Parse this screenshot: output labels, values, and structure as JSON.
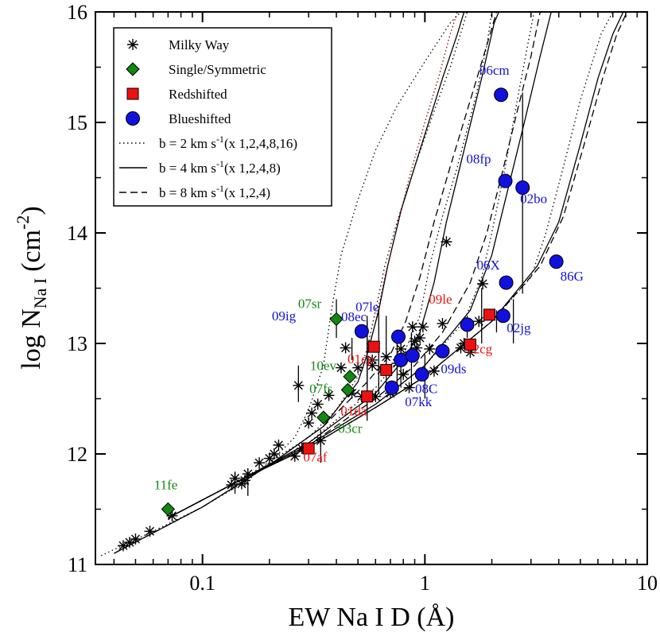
{
  "chart_data": {
    "type": "scatter",
    "xscale": "log",
    "xlim": [
      0.033,
      10
    ],
    "ylim": [
      11,
      16
    ],
    "xlabel": "EW Na I D (Å)",
    "ylabel_main": "log N",
    "ylabel_sub": "Na I",
    "ylabel_unit": "(cm",
    "ylabel_sup": "-2",
    "ylabel_close": ")",
    "x_ticks": [
      {
        "value": 0.1,
        "label": "0.1"
      },
      {
        "value": 1,
        "label": "1"
      },
      {
        "value": 10,
        "label": "10"
      }
    ],
    "y_ticks": [
      {
        "value": 11,
        "label": "11"
      },
      {
        "value": 12,
        "label": "12"
      },
      {
        "value": 13,
        "label": "13"
      },
      {
        "value": 14,
        "label": "14"
      },
      {
        "value": 15,
        "label": "15"
      },
      {
        "value": 16,
        "label": "16"
      }
    ],
    "colors": {
      "green": "#118811",
      "red": "#ee1111",
      "blue": "#1111dd",
      "black": "#000000",
      "curve_red": "#880000"
    },
    "legend": {
      "placement": "top-left",
      "items": [
        {
          "label": "Milky Way",
          "marker": "asterisk"
        },
        {
          "label": "Single/Symmetric",
          "marker": "diamond"
        },
        {
          "label": "Redshifted",
          "marker": "square"
        },
        {
          "label": "Blueshifted",
          "marker": "circle"
        },
        {
          "label": "b = 2 km s",
          "sup": "-1",
          "tail": "(x 1,2,4,8,16)",
          "line": "dotted"
        },
        {
          "label": "b = 4 km s",
          "sup": "-1",
          "tail": "(x 1,2,4,8)",
          "line": "solid"
        },
        {
          "label": "b = 8 km s",
          "sup": "-1",
          "tail": "(x 1,2,4)",
          "line": "dashed"
        }
      ]
    },
    "milky_way": [
      [
        0.044,
        11.17
      ],
      [
        0.047,
        11.2
      ],
      [
        0.05,
        11.23
      ],
      [
        0.058,
        11.3
      ],
      [
        0.073,
        11.44
      ],
      [
        0.135,
        11.72
      ],
      [
        0.14,
        11.78
      ],
      [
        0.15,
        11.73
      ],
      [
        0.155,
        11.76
      ],
      [
        0.16,
        11.82
      ],
      [
        0.18,
        11.92
      ],
      [
        0.2,
        11.96
      ],
      [
        0.21,
        12.0
      ],
      [
        0.22,
        12.08
      ],
      [
        0.26,
        11.98
      ],
      [
        0.27,
        12.62
      ],
      [
        0.28,
        12.05
      ],
      [
        0.3,
        12.28
      ],
      [
        0.31,
        12.37
      ],
      [
        0.33,
        12.45
      ],
      [
        0.34,
        12.12
      ],
      [
        0.37,
        12.53
      ],
      [
        0.42,
        12.78
      ],
      [
        0.44,
        12.96
      ],
      [
        0.47,
        12.55
      ],
      [
        0.5,
        12.78
      ],
      [
        0.52,
        12.52
      ],
      [
        0.58,
        12.8
      ],
      [
        0.58,
        12.85
      ],
      [
        0.6,
        12.52
      ],
      [
        0.64,
        12.76
      ],
      [
        0.67,
        12.88
      ],
      [
        0.7,
        12.55
      ],
      [
        0.72,
        12.58
      ],
      [
        0.75,
        12.82
      ],
      [
        0.78,
        12.95
      ],
      [
        0.8,
        12.72
      ],
      [
        0.82,
        12.88
      ],
      [
        0.85,
        12.6
      ],
      [
        0.87,
        12.9
      ],
      [
        0.88,
        13.15
      ],
      [
        0.9,
        13.02
      ],
      [
        0.92,
        12.96
      ],
      [
        0.95,
        13.05
      ],
      [
        0.98,
        13.15
      ],
      [
        1.05,
        12.95
      ],
      [
        1.1,
        12.75
      ],
      [
        1.2,
        12.93
      ],
      [
        1.2,
        13.18
      ],
      [
        1.25,
        13.92
      ],
      [
        1.45,
        12.96
      ],
      [
        1.5,
        13.0
      ],
      [
        1.6,
        12.92
      ],
      [
        1.75,
        13.2
      ],
      [
        1.82,
        13.54
      ]
    ],
    "error_bars": [
      [
        0.27,
        12.47,
        12.8
      ],
      [
        0.34,
        11.92,
        12.22
      ],
      [
        0.14,
        11.64,
        11.84
      ],
      [
        0.16,
        11.62,
        11.8
      ],
      [
        0.55,
        12.6,
        13.2
      ],
      [
        0.62,
        12.55,
        13.3
      ],
      [
        0.67,
        12.6,
        13.25
      ],
      [
        0.55,
        12.3,
        12.9
      ],
      [
        0.78,
        12.6,
        13.0
      ],
      [
        0.75,
        12.58,
        13.02
      ],
      [
        0.87,
        12.6,
        13.1
      ],
      [
        1.0,
        12.5,
        12.9
      ],
      [
        0.55,
        12.95,
        13.25
      ],
      [
        0.47,
        12.85,
        13.05
      ],
      [
        0.4,
        13.05,
        13.4
      ],
      [
        1.55,
        13.05,
        13.25
      ],
      [
        1.8,
        13.0,
        13.5
      ],
      [
        2.5,
        13.0,
        13.4
      ],
      [
        2.75,
        13.45,
        15.27
      ],
      [
        2.1,
        13.1,
        13.3
      ]
    ],
    "single_symmetric": [
      {
        "x": 0.07,
        "y": 11.5,
        "label": "11fe",
        "lx": -0.01,
        "ly": 0.18
      },
      {
        "x": 0.4,
        "y": 13.22,
        "label": "07sr",
        "lx": -0.12,
        "ly": 0.1
      },
      {
        "x": 0.46,
        "y": 12.7,
        "label": "10ev",
        "lx": -0.12,
        "ly": 0.06
      },
      {
        "x": 0.45,
        "y": 12.58,
        "label": "07fs",
        "lx": -0.12,
        "ly": -0.03
      },
      {
        "x": 0.35,
        "y": 12.33,
        "label": "03cr",
        "lx": 0.12,
        "ly": -0.14
      }
    ],
    "redshifted": [
      {
        "x": 0.3,
        "y": 12.05,
        "label": "07af",
        "lx": 0.03,
        "ly": -0.12
      },
      {
        "x": 0.55,
        "y": 12.52,
        "label": "01da",
        "lx": -0.06,
        "ly": -0.17
      },
      {
        "x": 0.59,
        "y": 12.97,
        "label": "01cp",
        "lx": -0.06,
        "ly": -0.15
      },
      {
        "x": 0.67,
        "y": 12.76,
        "label": "",
        "lx": 0,
        "ly": 0
      },
      {
        "x": 1.95,
        "y": 13.26,
        "label": "09le",
        "lx": -0.22,
        "ly": 0.1
      },
      {
        "x": 1.6,
        "y": 12.99,
        "label": "12cg",
        "lx": 0.04,
        "ly": -0.08
      }
    ],
    "blueshifted": [
      {
        "x": 0.52,
        "y": 13.11,
        "label": "09ig",
        "lx": -0.35,
        "ly": 0.1
      },
      {
        "x": 0.76,
        "y": 13.06,
        "label": "08ec",
        "lx": -0.2,
        "ly": 0.14
      },
      {
        "x": 0.71,
        "y": 12.6,
        "label": "07kk",
        "lx": 0.12,
        "ly": -0.17
      },
      {
        "x": 0.78,
        "y": 12.85,
        "label": "",
        "lx": 0,
        "ly": 0
      },
      {
        "x": 0.88,
        "y": 12.89,
        "label": "",
        "lx": 0,
        "ly": 0
      },
      {
        "x": 0.97,
        "y": 12.72,
        "label": "08C",
        "lx": 0.02,
        "ly": -0.17
      },
      {
        "x": 1.2,
        "y": 12.93,
        "label": "09ds",
        "lx": 0.05,
        "ly": -0.2
      },
      {
        "x": 1.55,
        "y": 13.17,
        "label": "07le",
        "lx": -0.45,
        "ly": 0.12
      },
      {
        "x": 2.2,
        "y": 15.25,
        "label": "06cm",
        "lx": -0.03,
        "ly": 0.18
      },
      {
        "x": 2.3,
        "y": 14.47,
        "label": "08fp",
        "lx": -0.12,
        "ly": 0.16
      },
      {
        "x": 2.75,
        "y": 14.41,
        "label": "02bo",
        "lx": 0.05,
        "ly": -0.14
      },
      {
        "x": 2.32,
        "y": 13.55,
        "label": "06X",
        "lx": -0.08,
        "ly": 0.12
      },
      {
        "x": 2.25,
        "y": 13.25,
        "label": "02jg",
        "lx": 0.07,
        "ly": -0.15
      },
      {
        "x": 3.9,
        "y": 13.74,
        "label": "86G",
        "lx": 0.07,
        "ly": -0.17
      }
    ],
    "curves": {
      "dotted": [
        [
          [
            0.035,
            11.08
          ],
          [
            0.06,
            11.3
          ],
          [
            0.1,
            11.52
          ],
          [
            0.15,
            11.73
          ],
          [
            0.2,
            11.92
          ],
          [
            0.26,
            12.15
          ],
          [
            0.3,
            12.4
          ],
          [
            0.35,
            12.8
          ],
          [
            0.38,
            13.3
          ],
          [
            0.42,
            13.8
          ],
          [
            0.5,
            14.3
          ],
          [
            0.6,
            14.75
          ],
          [
            0.75,
            15.15
          ],
          [
            1.0,
            15.55
          ],
          [
            1.3,
            15.9
          ],
          [
            1.45,
            16.0
          ]
        ],
        [
          [
            0.07,
            11.42
          ],
          [
            0.15,
            11.77
          ],
          [
            0.3,
            12.15
          ],
          [
            0.4,
            12.4
          ],
          [
            0.5,
            12.7
          ],
          [
            0.55,
            12.95
          ],
          [
            0.6,
            13.3
          ],
          [
            0.66,
            13.7
          ],
          [
            0.75,
            14.1
          ],
          [
            0.9,
            14.6
          ],
          [
            1.1,
            15.1
          ],
          [
            1.3,
            15.5
          ],
          [
            1.55,
            16.0
          ]
        ],
        [
          [
            0.07,
            11.42
          ],
          [
            0.15,
            11.77
          ],
          [
            0.3,
            12.1
          ],
          [
            0.6,
            12.6
          ],
          [
            0.8,
            12.9
          ],
          [
            0.95,
            13.25
          ],
          [
            1.05,
            13.7
          ],
          [
            1.2,
            14.15
          ],
          [
            1.4,
            14.6
          ],
          [
            1.7,
            15.25
          ],
          [
            1.9,
            15.7
          ],
          [
            2.0,
            16.0
          ]
        ],
        [
          [
            0.07,
            11.42
          ],
          [
            0.15,
            11.77
          ],
          [
            0.3,
            12.08
          ],
          [
            0.6,
            12.45
          ],
          [
            1.0,
            12.8
          ],
          [
            1.5,
            13.2
          ],
          [
            1.8,
            13.6
          ],
          [
            2.0,
            14.0
          ],
          [
            2.3,
            14.6
          ],
          [
            2.6,
            15.2
          ],
          [
            2.9,
            15.7
          ],
          [
            3.1,
            16.0
          ]
        ],
        [
          [
            0.07,
            11.42
          ],
          [
            0.15,
            11.77
          ],
          [
            0.3,
            12.06
          ],
          [
            0.6,
            12.42
          ],
          [
            1.0,
            12.7
          ],
          [
            2.0,
            13.2
          ],
          [
            3.0,
            13.6
          ],
          [
            3.5,
            14.0
          ],
          [
            4.2,
            14.6
          ],
          [
            5.0,
            15.2
          ],
          [
            6.2,
            15.8
          ],
          [
            7.0,
            16.0
          ]
        ]
      ],
      "solid": [
        [
          [
            0.04,
            11.1
          ],
          [
            0.1,
            11.52
          ],
          [
            0.2,
            11.9
          ],
          [
            0.35,
            12.25
          ],
          [
            0.5,
            12.65
          ],
          [
            0.55,
            12.9
          ],
          [
            0.62,
            13.3
          ],
          [
            0.68,
            13.7
          ],
          [
            0.78,
            14.2
          ],
          [
            0.95,
            14.75
          ],
          [
            1.2,
            15.4
          ],
          [
            1.4,
            15.8
          ],
          [
            1.5,
            16.0
          ]
        ],
        [
          [
            0.07,
            11.42
          ],
          [
            0.15,
            11.77
          ],
          [
            0.3,
            12.1
          ],
          [
            0.6,
            12.55
          ],
          [
            0.8,
            12.85
          ],
          [
            0.95,
            13.1
          ],
          [
            1.1,
            13.55
          ],
          [
            1.25,
            14.1
          ],
          [
            1.5,
            14.75
          ],
          [
            1.8,
            15.4
          ],
          [
            2.05,
            15.9
          ],
          [
            2.15,
            16.0
          ]
        ],
        [
          [
            0.07,
            11.42
          ],
          [
            0.15,
            11.77
          ],
          [
            0.3,
            12.08
          ],
          [
            0.6,
            12.45
          ],
          [
            1.0,
            12.8
          ],
          [
            1.6,
            13.3
          ],
          [
            2.0,
            13.8
          ],
          [
            2.3,
            14.3
          ],
          [
            2.8,
            15.0
          ],
          [
            3.3,
            15.6
          ],
          [
            3.7,
            16.0
          ]
        ],
        [
          [
            0.07,
            11.42
          ],
          [
            0.15,
            11.77
          ],
          [
            0.3,
            12.06
          ],
          [
            0.6,
            12.42
          ],
          [
            1.0,
            12.7
          ],
          [
            2.0,
            13.2
          ],
          [
            3.2,
            13.7
          ],
          [
            4.0,
            14.1
          ],
          [
            5.0,
            14.8
          ],
          [
            6.0,
            15.4
          ],
          [
            7.0,
            15.8
          ],
          [
            7.8,
            16.0
          ]
        ]
      ],
      "dashed": [
        [
          [
            0.04,
            11.1
          ],
          [
            0.1,
            11.52
          ],
          [
            0.2,
            11.9
          ],
          [
            0.35,
            12.25
          ],
          [
            0.55,
            12.65
          ],
          [
            0.7,
            12.9
          ],
          [
            0.82,
            13.2
          ],
          [
            0.95,
            13.6
          ],
          [
            1.1,
            14.1
          ],
          [
            1.3,
            14.6
          ],
          [
            1.6,
            15.2
          ],
          [
            1.9,
            15.7
          ],
          [
            2.1,
            16.0
          ]
        ],
        [
          [
            0.07,
            11.42
          ],
          [
            0.15,
            11.77
          ],
          [
            0.3,
            12.08
          ],
          [
            0.6,
            12.5
          ],
          [
            0.9,
            12.8
          ],
          [
            1.2,
            13.1
          ],
          [
            1.6,
            13.55
          ],
          [
            1.9,
            14.0
          ],
          [
            2.2,
            14.5
          ],
          [
            2.6,
            15.1
          ],
          [
            3.0,
            15.6
          ],
          [
            3.3,
            16.0
          ]
        ],
        [
          [
            0.07,
            11.42
          ],
          [
            0.15,
            11.77
          ],
          [
            0.3,
            12.06
          ],
          [
            0.6,
            12.42
          ],
          [
            1.0,
            12.7
          ],
          [
            2.0,
            13.2
          ],
          [
            3.3,
            13.7
          ],
          [
            4.2,
            14.15
          ],
          [
            5.2,
            14.8
          ],
          [
            6.3,
            15.4
          ],
          [
            7.3,
            15.8
          ],
          [
            8.1,
            16.0
          ]
        ]
      ],
      "red_dotted": [
        [
          [
            0.6,
            13.2
          ],
          [
            0.66,
            13.6
          ],
          [
            0.74,
            14.0
          ],
          [
            0.85,
            14.5
          ],
          [
            1.0,
            15.0
          ],
          [
            1.15,
            15.4
          ],
          [
            1.3,
            15.8
          ],
          [
            1.4,
            16.0
          ]
        ]
      ]
    }
  }
}
